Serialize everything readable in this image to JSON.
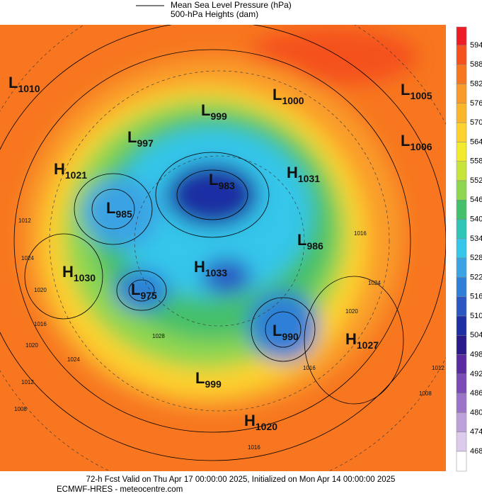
{
  "legend": {
    "items": [
      "Mean Sea Level Pressure (hPa)",
      "500-hPa Heights (dam)"
    ]
  },
  "colorbar": {
    "ticks": [
      594,
      588,
      582,
      576,
      570,
      564,
      558,
      552,
      546,
      540,
      534,
      528,
      522,
      516,
      510,
      504,
      498,
      492,
      486,
      480,
      474,
      468
    ],
    "colors": [
      "#ee1c25",
      "#f4511f",
      "#f7761f",
      "#f99b2a",
      "#fbb62c",
      "#fdd22f",
      "#f2ea2c",
      "#c7e43a",
      "#8fd650",
      "#44c06a",
      "#2ec5b7",
      "#36c6ea",
      "#3aa3e3",
      "#2f7fd6",
      "#2c57c3",
      "#1e2fa3",
      "#2a1a8a",
      "#5a2aa0",
      "#7b4cb5",
      "#9c74c7",
      "#bda2d9",
      "#dccbea",
      "#ffffff"
    ]
  },
  "centers": [
    {
      "kind": "L",
      "value": "1010"
    },
    {
      "kind": "L",
      "value": "1000"
    },
    {
      "kind": "L",
      "value": "1005"
    },
    {
      "kind": "L",
      "value": "999"
    },
    {
      "kind": "L",
      "value": "997"
    },
    {
      "kind": "L",
      "value": "1006"
    },
    {
      "kind": "H",
      "value": "1021"
    },
    {
      "kind": "H",
      "value": "1031"
    },
    {
      "kind": "L",
      "value": "983"
    },
    {
      "kind": "L",
      "value": "985"
    },
    {
      "kind": "L",
      "value": "986"
    },
    {
      "kind": "H",
      "value": "1030"
    },
    {
      "kind": "H",
      "value": "1033"
    },
    {
      "kind": "L",
      "value": "975"
    },
    {
      "kind": "L",
      "value": "990"
    },
    {
      "kind": "H",
      "value": "1027"
    },
    {
      "kind": "L",
      "value": "999"
    },
    {
      "kind": "H",
      "value": "1020"
    }
  ],
  "contour_labels": [
    "1012",
    "1024",
    "1020",
    "1016",
    "1020",
    "1024",
    "1028",
    "1012",
    "1008",
    "1016",
    "1024",
    "1020",
    "1016",
    "1012",
    "1008",
    "1016"
  ],
  "footer": {
    "line1": "72-h Fcst Valid on Thu Apr 17 00:00:00 2025, Initialized on Mon Apr 14 00:00:00 2025",
    "line2": "ECMWF-HRES  - meteocentre.com"
  }
}
